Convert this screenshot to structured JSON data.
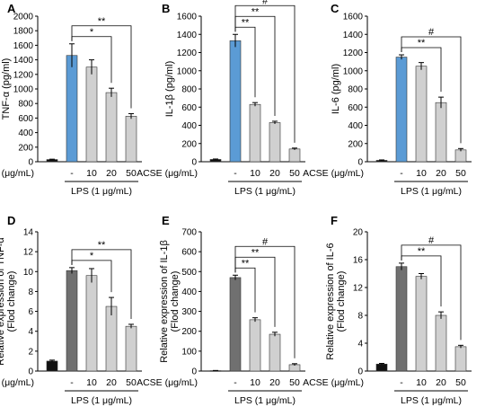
{
  "figure": {
    "x_axis_label": "ACSE (μg/mL)",
    "group_label": "LPS (1 μg/mL)"
  },
  "colors": {
    "control_bar": "#111111",
    "lps_bar_elisa": "#5b9bd5",
    "lps_bar_qpcr": "#707070",
    "acse_bar": "#d0d0d0",
    "bar_outline": "#333333"
  },
  "chart_data": [
    {
      "panel": "A",
      "type": "bar",
      "ylabel": "TNF-α (pg/ml)",
      "ylim": [
        0,
        2000
      ],
      "yticks": [
        0,
        200,
        400,
        600,
        800,
        1000,
        1200,
        1400,
        1600,
        1800,
        2000
      ],
      "categories": [
        "",
        "-",
        "10",
        "20",
        "50"
      ],
      "values": [
        30,
        1460,
        1300,
        950,
        625
      ],
      "errors": [
        5,
        160,
        100,
        60,
        35
      ],
      "significance": [
        {
          "from": 1,
          "to": 4,
          "label": "**"
        },
        {
          "from": 1,
          "to": 3,
          "label": "*"
        }
      ]
    },
    {
      "panel": "B",
      "type": "bar",
      "ylabel": "IL-1β (pg/ml)",
      "ylim": [
        0,
        1600
      ],
      "yticks": [
        0,
        200,
        400,
        600,
        800,
        1000,
        1200,
        1400,
        1600
      ],
      "categories": [
        "",
        "-",
        "10",
        "20",
        "50"
      ],
      "values": [
        25,
        1330,
        630,
        430,
        140
      ],
      "errors": [
        5,
        70,
        20,
        15,
        10
      ],
      "significance": [
        {
          "from": 1,
          "to": 4,
          "label": "#"
        },
        {
          "from": 1,
          "to": 3,
          "label": "**"
        },
        {
          "from": 1,
          "to": 2,
          "label": "**"
        }
      ]
    },
    {
      "panel": "C",
      "type": "bar",
      "ylabel": "IL-6 (pg/ml)",
      "ylim": [
        0,
        1600
      ],
      "yticks": [
        0,
        200,
        400,
        600,
        800,
        1000,
        1200,
        1400,
        1600
      ],
      "categories": [
        "",
        "-",
        "10",
        "20",
        "50"
      ],
      "values": [
        15,
        1150,
        1050,
        650,
        130
      ],
      "errors": [
        5,
        25,
        40,
        60,
        15
      ],
      "significance": [
        {
          "from": 1,
          "to": 4,
          "label": "#"
        },
        {
          "from": 1,
          "to": 3,
          "label": "**"
        }
      ]
    },
    {
      "panel": "D",
      "type": "bar",
      "ylabel": "Relative expression of TNF-α (Flod change)",
      "ylim": [
        0,
        14
      ],
      "yticks": [
        0,
        2,
        4,
        6,
        8,
        10,
        12,
        14
      ],
      "categories": [
        "",
        "-",
        "10",
        "20",
        "50"
      ],
      "values": [
        1.0,
        10.1,
        9.6,
        6.5,
        4.5
      ],
      "errors": [
        0.1,
        0.3,
        0.7,
        0.9,
        0.2
      ],
      "significance": [
        {
          "from": 1,
          "to": 4,
          "label": "**"
        },
        {
          "from": 1,
          "to": 3,
          "label": "*"
        }
      ]
    },
    {
      "panel": "E",
      "type": "bar",
      "ylabel": "Relative expression of IL-1β (Flod change)",
      "ylim": [
        0,
        700
      ],
      "yticks": [
        0,
        100,
        200,
        300,
        400,
        500,
        600,
        700
      ],
      "categories": [
        "",
        "-",
        "10",
        "20",
        "50"
      ],
      "values": [
        2,
        470,
        258,
        185,
        32
      ],
      "errors": [
        1,
        12,
        10,
        10,
        5
      ],
      "significance": [
        {
          "from": 1,
          "to": 4,
          "label": "#"
        },
        {
          "from": 1,
          "to": 3,
          "label": "**"
        },
        {
          "from": 1,
          "to": 2,
          "label": "**"
        }
      ]
    },
    {
      "panel": "F",
      "type": "bar",
      "ylabel": "Relative expression of IL-6 (Flod change)",
      "ylim": [
        0,
        20
      ],
      "yticks": [
        0,
        4,
        8,
        12,
        16,
        20
      ],
      "categories": [
        "",
        "-",
        "10",
        "20",
        "50"
      ],
      "values": [
        1.0,
        15.0,
        13.6,
        8.0,
        3.5
      ],
      "errors": [
        0.1,
        0.5,
        0.4,
        0.5,
        0.2
      ],
      "significance": [
        {
          "from": 1,
          "to": 4,
          "label": "#"
        },
        {
          "from": 1,
          "to": 3,
          "label": "**"
        }
      ]
    }
  ]
}
